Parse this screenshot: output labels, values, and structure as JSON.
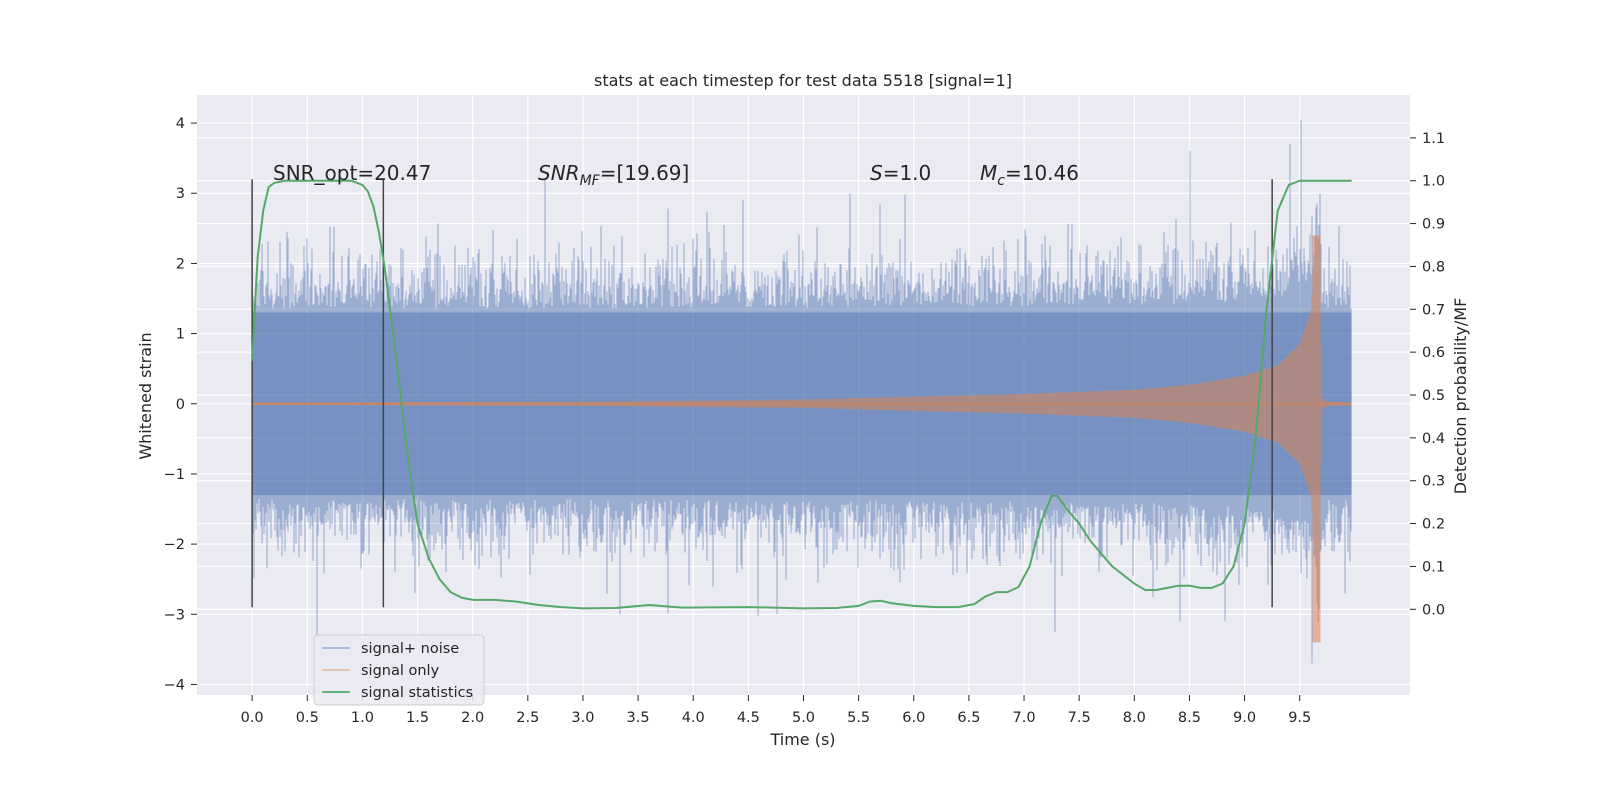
{
  "chart_data": {
    "type": "line",
    "title": "stats at each timestep for test data 5518 [signal=1]",
    "xlabel": "Time (s)",
    "ylabel_left": "Whitened strain",
    "ylabel_right": "Detection probability/MF",
    "xlim": [
      -0.5,
      10.5
    ],
    "ylim_left": [
      -4.15,
      4.4
    ],
    "ylim_right": [
      -0.2,
      1.2
    ],
    "x_ticks": [
      "0.0",
      "0.5",
      "1.0",
      "1.5",
      "2.0",
      "2.5",
      "3.0",
      "3.5",
      "4.0",
      "4.5",
      "5.0",
      "5.5",
      "6.0",
      "6.5",
      "7.0",
      "7.5",
      "8.0",
      "8.5",
      "9.0",
      "9.5"
    ],
    "y_ticks_left": [
      "4",
      "3",
      "2",
      "1",
      "0",
      "−1",
      "−2",
      "−3",
      "−4"
    ],
    "y_ticks_right": [
      "1.1",
      "1.0",
      "0.9",
      "0.8",
      "0.7",
      "0.6",
      "0.5",
      "0.4",
      "0.3",
      "0.2",
      "0.1",
      "0.0"
    ],
    "grid": true,
    "legend_position": "lower-left",
    "legend": [
      "signal+ noise",
      "signal only",
      "signal statistics"
    ],
    "annotations": {
      "snr_opt": "SNR_opt=20.47",
      "snr_mf_main": "SNR",
      "snr_mf_sub": "MF",
      "snr_mf_value": "=[19.69]",
      "s_main": "S",
      "s_value": "=1.0",
      "mc_main": "M",
      "mc_sub": "c",
      "mc_value": "=10.46"
    },
    "vertical_markers_x": [
      0.0,
      1.19,
      9.25
    ],
    "noise_envelope": {
      "x_range": [
        0.0,
        9.97
      ],
      "typical_abs_max": 2.6,
      "peak_max": 4.05,
      "peak_min": -3.7
    },
    "signal_only_envelope": {
      "x": [
        0.0,
        3.0,
        5.0,
        6.0,
        7.0,
        8.0,
        8.5,
        9.0,
        9.3,
        9.5,
        9.6,
        9.65,
        9.67,
        9.7,
        9.75,
        9.97
      ],
      "amplitude": [
        0.02,
        0.03,
        0.06,
        0.1,
        0.14,
        0.2,
        0.27,
        0.4,
        0.55,
        0.85,
        1.3,
        2.4,
        3.3,
        0.08,
        0.03,
        0.02
      ]
    },
    "series": [
      {
        "name": "signal statistics",
        "color": "#55a868",
        "x": [
          0.0,
          0.05,
          0.1,
          0.15,
          0.2,
          0.3,
          0.5,
          0.7,
          0.9,
          1.0,
          1.05,
          1.1,
          1.15,
          1.2,
          1.3,
          1.4,
          1.5,
          1.6,
          1.7,
          1.8,
          1.9,
          2.0,
          2.2,
          2.4,
          2.6,
          2.8,
          3.0,
          3.3,
          3.6,
          3.9,
          4.5,
          5.0,
          5.3,
          5.5,
          5.6,
          5.7,
          5.8,
          6.0,
          6.2,
          6.4,
          6.55,
          6.65,
          6.75,
          6.85,
          6.95,
          7.05,
          7.15,
          7.25,
          7.3,
          7.4,
          7.5,
          7.6,
          7.7,
          7.8,
          7.9,
          8.0,
          8.1,
          8.2,
          8.3,
          8.4,
          8.5,
          8.6,
          8.7,
          8.8,
          8.9,
          9.0,
          9.1,
          9.2,
          9.3,
          9.4,
          9.5,
          9.6,
          9.7,
          9.8,
          9.9,
          9.97
        ],
        "y": [
          0.58,
          0.82,
          0.93,
          0.985,
          0.995,
          1.0,
          1.0,
          1.0,
          1.0,
          0.99,
          0.975,
          0.94,
          0.88,
          0.8,
          0.6,
          0.38,
          0.2,
          0.12,
          0.07,
          0.04,
          0.027,
          0.022,
          0.022,
          0.018,
          0.01,
          0.005,
          0.002,
          0.003,
          0.01,
          0.004,
          0.005,
          0.002,
          0.003,
          0.008,
          0.018,
          0.02,
          0.014,
          0.008,
          0.005,
          0.005,
          0.012,
          0.03,
          0.04,
          0.04,
          0.052,
          0.1,
          0.2,
          0.265,
          0.265,
          0.23,
          0.2,
          0.16,
          0.13,
          0.1,
          0.08,
          0.06,
          0.045,
          0.045,
          0.05,
          0.055,
          0.055,
          0.05,
          0.05,
          0.06,
          0.1,
          0.2,
          0.4,
          0.7,
          0.93,
          0.99,
          1.0,
          1.0,
          1.0,
          1.0,
          1.0,
          1.0
        ]
      },
      {
        "name": "signal only",
        "color": "#dd8452"
      },
      {
        "name": "signal+ noise",
        "color": "#4c72b0"
      }
    ]
  },
  "colors": {
    "plot_bg": "#eaeaf2",
    "grid": "#ffffff",
    "noise": "#4c72b0",
    "signal": "#dd8452",
    "stat": "#55a868",
    "marker": "#444444"
  }
}
